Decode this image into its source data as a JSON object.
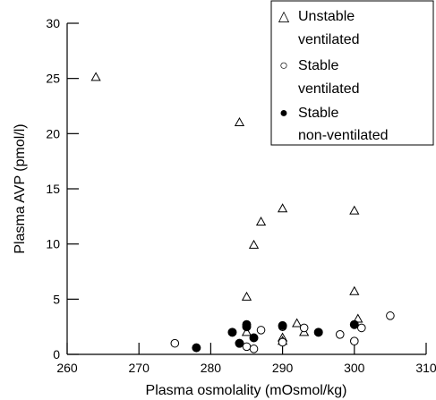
{
  "chart_data": {
    "type": "scatter",
    "xlabel": "Plasma osmolality (mOsmol/kg)",
    "ylabel": "Plasma AVP (pmol/l)",
    "xlim": [
      260,
      310
    ],
    "ylim": [
      0,
      30
    ],
    "xticks": [
      260,
      270,
      280,
      290,
      300,
      310
    ],
    "yticks": [
      0,
      5,
      10,
      15,
      20,
      25,
      30
    ],
    "grid": false,
    "legend_position": "top-right",
    "series": [
      {
        "name": "Unstable ventilated",
        "marker": "open-triangle",
        "points": [
          [
            264,
            25.1
          ],
          [
            284,
            21.0
          ],
          [
            285,
            5.2
          ],
          [
            285,
            2.0
          ],
          [
            286,
            9.9
          ],
          [
            287,
            12.0
          ],
          [
            290,
            13.2
          ],
          [
            290,
            1.5
          ],
          [
            290,
            1.2
          ],
          [
            292,
            2.8
          ],
          [
            293,
            2.0
          ],
          [
            300,
            13.0
          ],
          [
            300,
            5.7
          ],
          [
            300.5,
            3.2
          ]
        ]
      },
      {
        "name": "Stable ventilated",
        "marker": "open-circle",
        "points": [
          [
            275,
            1.0
          ],
          [
            285,
            0.7
          ],
          [
            286,
            0.5
          ],
          [
            287,
            2.2
          ],
          [
            290,
            2.5
          ],
          [
            290,
            1.1
          ],
          [
            293,
            2.4
          ],
          [
            298,
            1.8
          ],
          [
            300,
            1.2
          ],
          [
            301,
            2.4
          ],
          [
            305,
            3.5
          ]
        ]
      },
      {
        "name": "Stable non-ventilated",
        "marker": "filled-circle",
        "points": [
          [
            278,
            0.6
          ],
          [
            283,
            2.0
          ],
          [
            284,
            1.0
          ],
          [
            285,
            2.5
          ],
          [
            285,
            2.7
          ],
          [
            286,
            1.5
          ],
          [
            290,
            2.6
          ],
          [
            295,
            2.0
          ],
          [
            300,
            2.7
          ]
        ]
      }
    ]
  },
  "legend": {
    "entries": [
      {
        "symbol": "△",
        "lines": [
          "Unstable",
          "ventilated"
        ]
      },
      {
        "symbol": "○",
        "lines": [
          "Stable",
          "ventilated"
        ]
      },
      {
        "symbol": "●",
        "lines": [
          "Stable",
          "non-ventilated"
        ]
      }
    ]
  }
}
